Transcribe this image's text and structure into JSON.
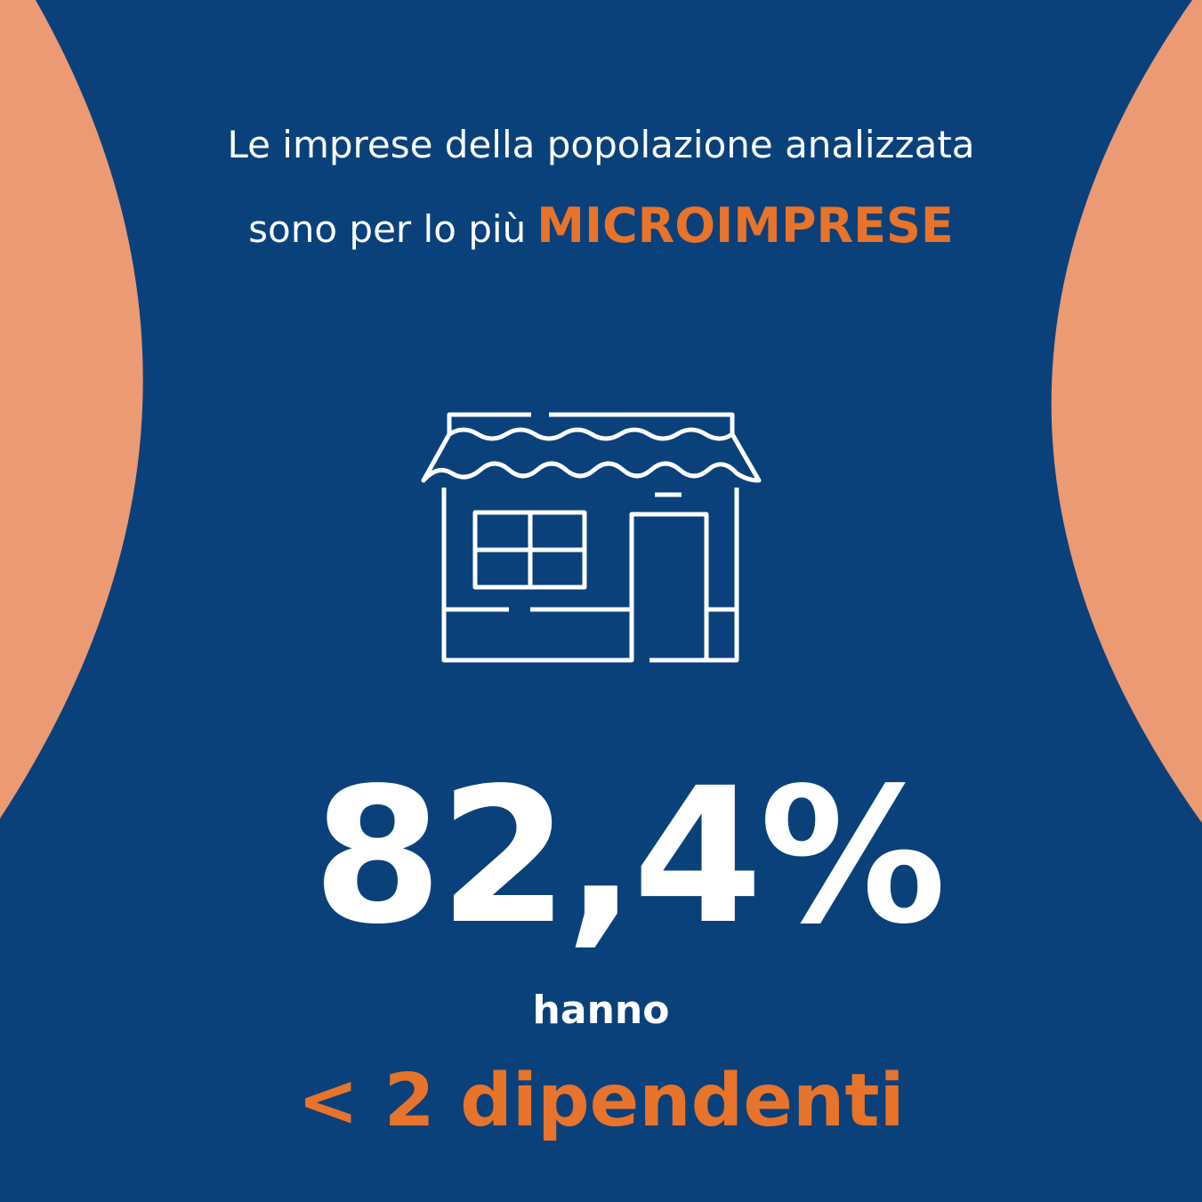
{
  "headline": {
    "line1": "Le imprese della popolazione analizzata",
    "line2_prefix": "sono per lo più",
    "line2_highlight": "MICROIMPRESE"
  },
  "stat": {
    "value": "82,4%",
    "caption": "hanno",
    "highlight": "< 2 dipendenti"
  }
}
